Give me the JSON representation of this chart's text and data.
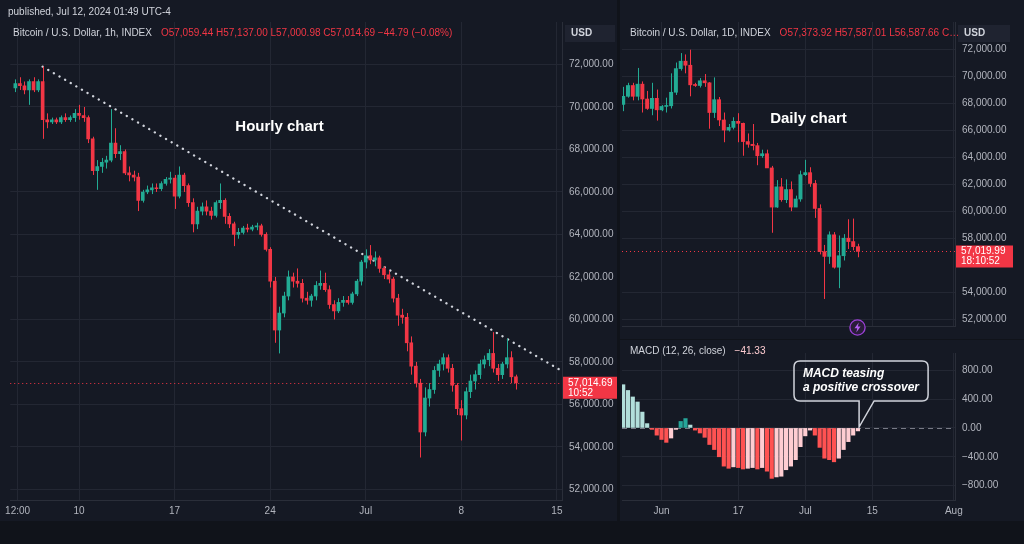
{
  "chart_data": [
    {
      "type": "candlestick",
      "title": "Bitcoin / U.S. Dollar, 1h, INDEX",
      "subtitle": "O57,059.44 H57,137.00 L57,000.98 C57,014.69 −44.79 (−0.08%)",
      "ylabel": "USD",
      "annotations": [
        "published, Jul 12, 2024 01:49 UTC-4",
        "Hourly chart"
      ],
      "series": [
        {
          "x": [
            "2024-06-05T08:00",
            "2024-06-05T16:00",
            "2024-06-06T00:00",
            "2024-06-06T08:00",
            "2024-06-06T16:00",
            "2024-06-07T00:00",
            "2024-06-07T08:00",
            "2024-06-07T16:00",
            "2024-06-08T00:00",
            "2024-06-08T08:00",
            "2024-06-08T16:00",
            "2024-06-09T00:00",
            "2024-06-09T08:00",
            "2024-06-09T16:00",
            "2024-06-10T00:00",
            "2024-06-10T08:00",
            "2024-06-10T16:00",
            "2024-06-11T00:00",
            "2024-06-11T08:00",
            "2024-06-11T16:00",
            "2024-06-12T00:00",
            "2024-06-12T08:00",
            "2024-06-12T16:00",
            "2024-06-13T00:00",
            "2024-06-13T08:00",
            "2024-06-13T16:00",
            "2024-06-14T00:00",
            "2024-06-14T08:00",
            "2024-06-14T16:00",
            "2024-06-15T00:00",
            "2024-06-15T08:00",
            "2024-06-15T16:00",
            "2024-06-16T00:00",
            "2024-06-16T08:00",
            "2024-06-16T16:00",
            "2024-06-17T00:00",
            "2024-06-17T08:00",
            "2024-06-17T16:00",
            "2024-06-18T00:00",
            "2024-06-18T08:00",
            "2024-06-18T16:00",
            "2024-06-19T00:00",
            "2024-06-19T08:00",
            "2024-06-19T16:00",
            "2024-06-20T00:00",
            "2024-06-20T08:00",
            "2024-06-20T16:00",
            "2024-06-21T00:00",
            "2024-06-21T08:00",
            "2024-06-21T16:00",
            "2024-06-22T00:00",
            "2024-06-22T08:00",
            "2024-06-22T16:00",
            "2024-06-23T00:00",
            "2024-06-23T08:00",
            "2024-06-23T16:00",
            "2024-06-24T00:00",
            "2024-06-24T08:00",
            "2024-06-24T16:00",
            "2024-06-25T00:00",
            "2024-06-25T08:00",
            "2024-06-25T16:00",
            "2024-06-26T00:00",
            "2024-06-26T08:00",
            "2024-06-26T16:00",
            "2024-06-27T00:00",
            "2024-06-27T08:00",
            "2024-06-27T16:00",
            "2024-06-28T00:00",
            "2024-06-28T08:00",
            "2024-06-28T16:00",
            "2024-06-29T00:00",
            "2024-06-29T08:00",
            "2024-06-29T16:00",
            "2024-06-30T00:00",
            "2024-06-30T08:00",
            "2024-06-30T16:00",
            "2024-07-01T00:00",
            "2024-07-01T08:00",
            "2024-07-01T16:00",
            "2024-07-02T00:00",
            "2024-07-02T08:00",
            "2024-07-02T16:00",
            "2024-07-03T00:00",
            "2024-07-03T08:00",
            "2024-07-03T16:00",
            "2024-07-04T00:00",
            "2024-07-04T08:00",
            "2024-07-04T16:00",
            "2024-07-05T00:00",
            "2024-07-05T08:00",
            "2024-07-05T16:00",
            "2024-07-06T00:00",
            "2024-07-06T08:00",
            "2024-07-06T16:00",
            "2024-07-07T00:00",
            "2024-07-07T08:00",
            "2024-07-07T16:00",
            "2024-07-08T00:00",
            "2024-07-08T08:00",
            "2024-07-08T16:00",
            "2024-07-09T00:00",
            "2024-07-09T08:00",
            "2024-07-09T16:00",
            "2024-07-10T00:00",
            "2024-07-10T08:00",
            "2024-07-10T16:00",
            "2024-07-11T00:00",
            "2024-07-11T08:00",
            "2024-07-11T16:00",
            "2024-07-12T00:00"
          ],
          "ohlc": [
            [
              70900,
              71300,
              70700,
              71100
            ],
            [
              71100,
              71400,
              70800,
              71000
            ],
            [
              71000,
              71200,
              70600,
              70800
            ],
            [
              70800,
              71300,
              70100,
              71200
            ],
            [
              71200,
              71400,
              70700,
              70800
            ],
            [
              70800,
              71300,
              70700,
              71200
            ],
            [
              71200,
              71900,
              68500,
              69400
            ],
            [
              69400,
              69700,
              69000,
              69300
            ],
            [
              69300,
              69500,
              69200,
              69400
            ],
            [
              69400,
              69500,
              69200,
              69300
            ],
            [
              69300,
              69600,
              69200,
              69500
            ],
            [
              69500,
              69700,
              69300,
              69400
            ],
            [
              69400,
              69600,
              69300,
              69500
            ],
            [
              69500,
              69900,
              69300,
              69700
            ],
            [
              69700,
              70100,
              69400,
              69600
            ],
            [
              69600,
              70000,
              69300,
              69500
            ],
            [
              69500,
              69600,
              68300,
              68500
            ],
            [
              68500,
              68600,
              66800,
              67000
            ],
            [
              67000,
              67500,
              66100,
              67200
            ],
            [
              67200,
              67600,
              66900,
              67400
            ],
            [
              67400,
              67700,
              67100,
              67500
            ],
            [
              67500,
              69900,
              67400,
              68300
            ],
            [
              68300,
              69000,
              67600,
              67800
            ],
            [
              67800,
              68200,
              67500,
              67900
            ],
            [
              67900,
              68000,
              66800,
              66900
            ],
            [
              66900,
              67200,
              66500,
              66800
            ],
            [
              66800,
              67000,
              66500,
              66700
            ],
            [
              66700,
              66900,
              65100,
              65600
            ],
            [
              65600,
              66100,
              65500,
              66000
            ],
            [
              66000,
              66300,
              65900,
              66100
            ],
            [
              66100,
              66400,
              65900,
              66200
            ],
            [
              66200,
              66400,
              66000,
              66150
            ],
            [
              66150,
              66500,
              66050,
              66400
            ],
            [
              66400,
              66700,
              66300,
              66600
            ],
            [
              66600,
              66950,
              66400,
              66650
            ],
            [
              66650,
              66800,
              65200,
              65800
            ],
            [
              65800,
              67200,
              65700,
              66800
            ],
            [
              66800,
              66900,
              66000,
              66300
            ],
            [
              66300,
              66400,
              65300,
              65500
            ],
            [
              65500,
              65700,
              64100,
              64500
            ],
            [
              64500,
              65300,
              64250,
              65100
            ],
            [
              65100,
              65500,
              64900,
              65300
            ],
            [
              65300,
              65600,
              64900,
              65100
            ],
            [
              65100,
              65300,
              64700,
              64900
            ],
            [
              64900,
              65600,
              64800,
              65500
            ],
            [
              65500,
              66400,
              65200,
              65600
            ],
            [
              65600,
              65700,
              64500,
              64850
            ],
            [
              64850,
              65000,
              64300,
              64500
            ],
            [
              64500,
              64600,
              63450,
              64000
            ],
            [
              64000,
              64300,
              63800,
              64100
            ],
            [
              64100,
              64400,
              64000,
              64300
            ],
            [
              64300,
              64500,
              64100,
              64250
            ],
            [
              64250,
              64450,
              64150,
              64350
            ],
            [
              64350,
              64550,
              64200,
              64400
            ],
            [
              64400,
              64500,
              63900,
              64000
            ],
            [
              64000,
              64100,
              63200,
              63300
            ],
            [
              63300,
              63400,
              61500,
              61800
            ],
            [
              61800,
              62000,
              58900,
              59500
            ],
            [
              59500,
              60600,
              58400,
              60300
            ],
            [
              60300,
              61300,
              60100,
              61100
            ],
            [
              61100,
              62300,
              60900,
              62000
            ],
            [
              62000,
              62200,
              61500,
              61800
            ],
            [
              61800,
              62400,
              61500,
              61700
            ],
            [
              61700,
              61900,
              60800,
              61000
            ],
            [
              61000,
              61300,
              60700,
              60900
            ],
            [
              60900,
              61200,
              60600,
              61100
            ],
            [
              61100,
              61800,
              60900,
              61600
            ],
            [
              61600,
              62300,
              61400,
              61700
            ],
            [
              61700,
              62200,
              61300,
              61400
            ],
            [
              61400,
              61600,
              60500,
              60700
            ],
            [
              60700,
              60900,
              60000,
              60400
            ],
            [
              60400,
              61000,
              60300,
              60800
            ],
            [
              60800,
              61100,
              60600,
              60900
            ],
            [
              60900,
              61100,
              60700,
              60800
            ],
            [
              60800,
              61300,
              60700,
              61200
            ],
            [
              61200,
              61900,
              61100,
              61800
            ],
            [
              61800,
              62800,
              61600,
              62700
            ],
            [
              62700,
              63300,
              62400,
              63000
            ],
            [
              63000,
              63500,
              62600,
              62800
            ],
            [
              62800,
              63200,
              62500,
              62900
            ],
            [
              62900,
              63000,
              62200,
              62400
            ],
            [
              62400,
              62500,
              61900,
              62100
            ],
            [
              62100,
              62300,
              61700,
              61900
            ],
            [
              61900,
              62000,
              60800,
              61000
            ],
            [
              61000,
              61200,
              59700,
              60200
            ],
            [
              60200,
              60500,
              59800,
              60100
            ],
            [
              60100,
              60300,
              58500,
              58900
            ],
            [
              58900,
              59200,
              57400,
              57800
            ],
            [
              57800,
              58000,
              56800,
              57000
            ],
            [
              57000,
              57200,
              53500,
              54700
            ],
            [
              54700,
              56800,
              54500,
              56300
            ],
            [
              56300,
              57000,
              55900,
              56700
            ],
            [
              56700,
              57800,
              56500,
              57600
            ],
            [
              57600,
              58100,
              57300,
              57900
            ],
            [
              57900,
              58400,
              57600,
              58200
            ],
            [
              58200,
              58350,
              57500,
              57700
            ],
            [
              57700,
              57900,
              56600,
              56900
            ],
            [
              56900,
              57000,
              55500,
              55800
            ],
            [
              55800,
              56200,
              54300,
              55500
            ],
            [
              55500,
              56800,
              55300,
              56600
            ],
            [
              56600,
              57400,
              56300,
              57100
            ],
            [
              57100,
              57600,
              56700,
              57400
            ],
            [
              57400,
              58100,
              57200,
              57900
            ],
            [
              57900,
              58300,
              57700,
              58100
            ],
            [
              58100,
              58600,
              57800,
              58400
            ],
            [
              58400,
              59400,
              57500,
              57700
            ],
            [
              57700,
              57900,
              57100,
              57400
            ],
            [
              57400,
              58000,
              57200,
              57900
            ],
            [
              57900,
              59100,
              57700,
              58200
            ],
            [
              58200,
              58500,
              57000,
              57300
            ],
            [
              57300,
              57400,
              56700,
              57014.69
            ]
          ],
          "colors": [
            "#22ab94",
            "#f23645",
            "#f23645",
            "#22ab94",
            "#f23645",
            "#22ab94",
            "#f23645",
            "#f23645",
            "#22ab94",
            "#f23645",
            "#22ab94",
            "#f23645",
            "#22ab94",
            "#22ab94",
            "#f23645",
            "#f23645",
            "#f23645",
            "#f23645",
            "#22ab94",
            "#22ab94",
            "#22ab94",
            "#22ab94",
            "#f23645",
            "#22ab94",
            "#f23645",
            "#f23645",
            "#f23645",
            "#f23645",
            "#22ab94",
            "#22ab94",
            "#22ab94",
            "#f23645",
            "#22ab94",
            "#22ab94",
            "#22ab94",
            "#f23645",
            "#22ab94",
            "#f23645",
            "#f23645",
            "#f23645",
            "#22ab94",
            "#22ab94",
            "#f23645",
            "#f23645",
            "#22ab94",
            "#22ab94",
            "#f23645",
            "#f23645",
            "#f23645",
            "#22ab94",
            "#22ab94",
            "#f23645",
            "#22ab94",
            "#22ab94",
            "#f23645",
            "#f23645",
            "#f23645",
            "#f23645",
            "#22ab94",
            "#22ab94",
            "#22ab94",
            "#f23645",
            "#f23645",
            "#f23645",
            "#f23645",
            "#22ab94",
            "#22ab94",
            "#22ab94",
            "#f23645",
            "#f23645",
            "#f23645",
            "#22ab94",
            "#22ab94",
            "#f23645",
            "#22ab94",
            "#22ab94",
            "#22ab94",
            "#22ab94",
            "#f23645",
            "#22ab94",
            "#f23645",
            "#f23645",
            "#f23645",
            "#f23645",
            "#f23645",
            "#f23645",
            "#f23645",
            "#f23645",
            "#f23645",
            "#f23645",
            "#22ab94",
            "#22ab94",
            "#22ab94",
            "#22ab94",
            "#22ab94",
            "#f23645",
            "#f23645",
            "#f23645",
            "#f23645",
            "#22ab94",
            "#22ab94",
            "#22ab94",
            "#22ab94",
            "#22ab94",
            "#22ab94",
            "#f23645",
            "#f23645",
            "#22ab94",
            "#22ab94",
            "#f23645",
            "#f23645"
          ]
        },
        {
          "type": "line",
          "x": [
            "2024-06-07T08:00",
            "2024-07-15T07:00"
          ],
          "values": [
            71900,
            57600
          ],
          "color": "#d1d4dc",
          "line_style": "dotted"
        }
      ],
      "ref_lines": [
        {
          "axis": "y",
          "value": 57014.69,
          "label": "57,014.69\n10:52",
          "color": "#f23645",
          "line_style": "dotted"
        }
      ],
      "xlim": [
        "2024-06-04T23:00",
        "2024-07-15T09:00"
      ],
      "xticks": [
        {
          "value": "2024-06-05T12:00",
          "label": "12:00"
        },
        {
          "value": "2024-06-10",
          "label": "10"
        },
        {
          "value": "2024-06-17",
          "label": "17"
        },
        {
          "value": "2024-06-24",
          "label": "24"
        },
        {
          "value": "2024-07-01",
          "label": "Jul"
        },
        {
          "value": "2024-07-08",
          "label": "8"
        },
        {
          "value": "2024-07-15",
          "label": "15"
        }
      ],
      "ylim": [
        51500,
        74000
      ],
      "yticks": [
        {
          "value": 52000,
          "label": "52,000.00"
        },
        {
          "value": 54000,
          "label": "54,000.00"
        },
        {
          "value": 56000,
          "label": "56,000.00"
        },
        {
          "value": 58000,
          "label": "58,000.00"
        },
        {
          "value": 60000,
          "label": "60,000.00"
        },
        {
          "value": 62000,
          "label": "62,000.00"
        },
        {
          "value": 64000,
          "label": "64,000.00"
        },
        {
          "value": 66000,
          "label": "66,000.00"
        },
        {
          "value": 68000,
          "label": "68,000.00"
        },
        {
          "value": 70000,
          "label": "70,000.00"
        },
        {
          "value": 72000,
          "label": "72,000.00"
        }
      ],
      "grid": true
    },
    {
      "type": "candlestick",
      "title": "Bitcoin / U.S. Dollar, 1D, INDEX",
      "subtitle": "O57,373.92 H57,587.01 L56,587.66 C…",
      "ylabel": "USD",
      "annotations": [
        "Daily chart"
      ],
      "x": [
        "2024-05-24",
        "2024-05-25",
        "2024-05-26",
        "2024-05-27",
        "2024-05-28",
        "2024-05-29",
        "2024-05-30",
        "2024-05-31",
        "2024-06-01",
        "2024-06-02",
        "2024-06-03",
        "2024-06-04",
        "2024-06-05",
        "2024-06-06",
        "2024-06-07",
        "2024-06-08",
        "2024-06-09",
        "2024-06-10",
        "2024-06-11",
        "2024-06-12",
        "2024-06-13",
        "2024-06-14",
        "2024-06-15",
        "2024-06-16",
        "2024-06-17",
        "2024-06-18",
        "2024-06-19",
        "2024-06-20",
        "2024-06-21",
        "2024-06-22",
        "2024-06-23",
        "2024-06-24",
        "2024-06-25",
        "2024-06-26",
        "2024-06-27",
        "2024-06-28",
        "2024-06-29",
        "2024-06-30",
        "2024-07-01",
        "2024-07-02",
        "2024-07-03",
        "2024-07-04",
        "2024-07-05",
        "2024-07-06",
        "2024-07-07",
        "2024-07-08",
        "2024-07-09",
        "2024-07-10",
        "2024-07-11",
        "2024-07-12"
      ],
      "ohlc": [
        [
          67900,
          69200,
          67400,
          68500
        ],
        [
          68500,
          69500,
          68400,
          69300
        ],
        [
          69300,
          69500,
          68200,
          68500
        ],
        [
          68500,
          70600,
          68200,
          69400
        ],
        [
          69400,
          69600,
          67300,
          68300
        ],
        [
          68300,
          68900,
          67500,
          67600
        ],
        [
          67600,
          69500,
          67100,
          68350
        ],
        [
          68350,
          69000,
          66700,
          67500
        ],
        [
          67500,
          67850,
          67400,
          67750
        ],
        [
          67750,
          68400,
          67300,
          67800
        ],
        [
          67800,
          70200,
          67600,
          68800
        ],
        [
          68800,
          71000,
          68600,
          70550
        ],
        [
          70550,
          71700,
          70400,
          71100
        ],
        [
          71100,
          71600,
          70200,
          70800
        ],
        [
          70800,
          71950,
          68500,
          69350
        ],
        [
          69350,
          69500,
          69200,
          69300
        ],
        [
          69300,
          69850,
          69150,
          69650
        ],
        [
          69650,
          70150,
          69200,
          69500
        ],
        [
          69500,
          69550,
          66100,
          67300
        ],
        [
          67300,
          69900,
          66900,
          68250
        ],
        [
          68250,
          68450,
          66300,
          66750
        ],
        [
          66750,
          67300,
          65100,
          66000
        ],
        [
          66000,
          66450,
          65900,
          66200
        ],
        [
          66200,
          66950,
          66050,
          66650
        ],
        [
          66650,
          67250,
          65100,
          66500
        ],
        [
          66500,
          66550,
          64100,
          65150
        ],
        [
          65150,
          65750,
          64700,
          64950
        ],
        [
          64950,
          66450,
          64500,
          64850
        ],
        [
          64850,
          65050,
          63400,
          64100
        ],
        [
          64100,
          64550,
          63950,
          64250
        ],
        [
          64250,
          64550,
          63200,
          63200
        ],
        [
          63200,
          63350,
          58400,
          60300
        ],
        [
          60300,
          62300,
          60250,
          61800
        ],
        [
          61800,
          62450,
          60700,
          60850
        ],
        [
          60850,
          62350,
          60600,
          61600
        ],
        [
          61600,
          62200,
          60000,
          60300
        ],
        [
          60300,
          61150,
          60300,
          60900
        ],
        [
          60900,
          63000,
          60700,
          62700
        ],
        [
          62700,
          63800,
          62600,
          62850
        ],
        [
          62850,
          63250,
          61800,
          62050
        ],
        [
          62050,
          62300,
          59500,
          60200
        ],
        [
          60200,
          60500,
          56800,
          57000
        ],
        [
          57000,
          57500,
          53500,
          56650
        ],
        [
          56650,
          58500,
          56100,
          58250
        ],
        [
          58250,
          58450,
          55750,
          55850
        ],
        [
          55850,
          58200,
          54300,
          56700
        ],
        [
          56700,
          58300,
          56350,
          58000
        ],
        [
          58000,
          59400,
          57200,
          57750
        ],
        [
          57750,
          59450,
          57100,
          57373.92
        ],
        [
          57373.92,
          57587.01,
          56587.66,
          57019.99
        ]
      ],
      "colors": [
        "#22ab94",
        "#22ab94",
        "#f23645",
        "#22ab94",
        "#f23645",
        "#f23645",
        "#22ab94",
        "#f23645",
        "#22ab94",
        "#22ab94",
        "#22ab94",
        "#22ab94",
        "#22ab94",
        "#f23645",
        "#f23645",
        "#f23645",
        "#22ab94",
        "#f23645",
        "#f23645",
        "#22ab94",
        "#f23645",
        "#f23645",
        "#22ab94",
        "#22ab94",
        "#f23645",
        "#f23645",
        "#f23645",
        "#f23645",
        "#f23645",
        "#22ab94",
        "#f23645",
        "#f23645",
        "#22ab94",
        "#f23645",
        "#22ab94",
        "#f23645",
        "#22ab94",
        "#22ab94",
        "#22ab94",
        "#f23645",
        "#f23645",
        "#f23645",
        "#f23645",
        "#22ab94",
        "#f23645",
        "#22ab94",
        "#22ab94",
        "#f23645",
        "#f23645",
        "#f23645"
      ],
      "ref_lines": [
        {
          "axis": "y",
          "value": 57019.99,
          "label": "57,019.99\n18:10:52",
          "color": "#f23645",
          "line_style": "dotted"
        }
      ],
      "xlim": [
        "2024-05-23T18:00",
        "2024-08-01T06:00"
      ],
      "xticks": [
        {
          "value": "2024-06-01",
          "label": null
        },
        {
          "value": "2024-06-17",
          "label": null
        },
        {
          "value": "2024-07-01",
          "label": null
        },
        {
          "value": "2024-07-15",
          "label": null
        },
        {
          "value": "2024-08-01",
          "label": null
        }
      ],
      "ylim": [
        51500,
        74000
      ],
      "yticks": [
        {
          "value": 52000,
          "label": "52,000.00"
        },
        {
          "value": 54000,
          "label": "54,000.00"
        },
        {
          "value": 58000,
          "label": "58,000.00"
        },
        {
          "value": 60000,
          "label": "60,000.00"
        },
        {
          "value": 62000,
          "label": "62,000.00"
        },
        {
          "value": 64000,
          "label": "64,000.00"
        },
        {
          "value": 66000,
          "label": "66,000.00"
        },
        {
          "value": 68000,
          "label": "68,000.00"
        },
        {
          "value": 70000,
          "label": "70,000.00"
        },
        {
          "value": 72000,
          "label": "72,000.00"
        }
      ],
      "grid": true,
      "tick_labels": "y"
    },
    {
      "type": "bar",
      "title": "MACD (12, 26, close)",
      "subtitle": "−41.33",
      "annotations": [
        {
          "text": "MACD teasing\na positive crossover",
          "x": "2024-07-12",
          "y": 0
        }
      ],
      "x": [
        "2024-05-24",
        "2024-05-25",
        "2024-05-26",
        "2024-05-27",
        "2024-05-28",
        "2024-05-29",
        "2024-05-30",
        "2024-05-31",
        "2024-06-01",
        "2024-06-02",
        "2024-06-03",
        "2024-06-04",
        "2024-06-05",
        "2024-06-06",
        "2024-06-07",
        "2024-06-08",
        "2024-06-09",
        "2024-06-10",
        "2024-06-11",
        "2024-06-12",
        "2024-06-13",
        "2024-06-14",
        "2024-06-15",
        "2024-06-16",
        "2024-06-17",
        "2024-06-18",
        "2024-06-19",
        "2024-06-20",
        "2024-06-21",
        "2024-06-22",
        "2024-06-23",
        "2024-06-24",
        "2024-06-25",
        "2024-06-26",
        "2024-06-27",
        "2024-06-28",
        "2024-06-29",
        "2024-06-30",
        "2024-07-01",
        "2024-07-02",
        "2024-07-03",
        "2024-07-04",
        "2024-07-05",
        "2024-07-06",
        "2024-07-07",
        "2024-07-08",
        "2024-07-09",
        "2024-07-10",
        "2024-07-11",
        "2024-07-12"
      ],
      "values": [
        600,
        520,
        430,
        360,
        220,
        60,
        -20,
        -100,
        -160,
        -200,
        -140,
        -20,
        90,
        130,
        40,
        -30,
        -70,
        -130,
        -230,
        -300,
        -400,
        -530,
        -560,
        -540,
        -550,
        -570,
        -560,
        -550,
        -570,
        -550,
        -600,
        -700,
        -680,
        -670,
        -580,
        -530,
        -440,
        -260,
        -110,
        -30,
        -100,
        -270,
        -420,
        -440,
        -470,
        -420,
        -300,
        -190,
        -100,
        -41.33
      ],
      "colors": [
        "#b2dfdb",
        "#b2dfdb",
        "#b2dfdb",
        "#b2dfdb",
        "#b2dfdb",
        "#b2dfdb",
        "#ff5252",
        "#ff5252",
        "#ff5252",
        "#ff5252",
        "#ffcdd2",
        "#ffcdd2",
        "#26a69a",
        "#26a69a",
        "#b2dfdb",
        "#ff5252",
        "#ff5252",
        "#ff5252",
        "#ff5252",
        "#ff5252",
        "#ff5252",
        "#ff5252",
        "#ff5252",
        "#ffcdd2",
        "#ff5252",
        "#ff5252",
        "#ffcdd2",
        "#ffcdd2",
        "#ff5252",
        "#ffcdd2",
        "#ff5252",
        "#ff5252",
        "#ffcdd2",
        "#ffcdd2",
        "#ffcdd2",
        "#ffcdd2",
        "#ffcdd2",
        "#ffcdd2",
        "#ffcdd2",
        "#ffcdd2",
        "#ff5252",
        "#ff5252",
        "#ff5252",
        "#ff5252",
        "#ff5252",
        "#ffcdd2",
        "#ffcdd2",
        "#ffcdd2",
        "#ffcdd2",
        "#ffcdd2"
      ],
      "ref_lines": [
        {
          "axis": "y",
          "value": 0,
          "color": "#787b86",
          "line_style": "dashed"
        }
      ],
      "xlim": [
        "2024-05-23T18:00",
        "2024-08-01T06:00"
      ],
      "xticks": [
        {
          "value": "2024-06-01",
          "label": "Jun"
        },
        {
          "value": "2024-06-17",
          "label": "17"
        },
        {
          "value": "2024-07-01",
          "label": "Jul"
        },
        {
          "value": "2024-07-15",
          "label": "15"
        },
        {
          "value": "2024-08-01",
          "label": "Aug"
        }
      ],
      "ylim": [
        -1000,
        1040
      ],
      "yticks": [
        {
          "value": -800,
          "label": "−800.00"
        },
        {
          "value": -400,
          "label": "−400.00"
        },
        {
          "value": 0,
          "label": "0.00"
        },
        {
          "value": 400,
          "label": "400.00"
        },
        {
          "value": 800,
          "label": "800.00"
        }
      ],
      "grid": true
    }
  ]
}
